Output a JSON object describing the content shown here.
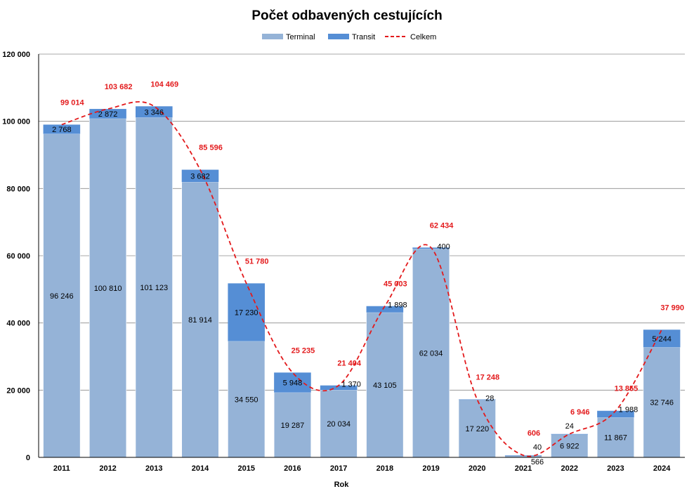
{
  "chart_data": {
    "type": "bar",
    "stacked": true,
    "title": "Počet odbavených cestujících",
    "xlabel": "Rok",
    "ylabel": "",
    "ylim": [
      0,
      120000
    ],
    "yticks": [
      0,
      20000,
      40000,
      60000,
      80000,
      100000,
      120000
    ],
    "ytick_labels": [
      "0",
      "20 000",
      "40 000",
      "60 000",
      "80 000",
      "100 000",
      "120 000"
    ],
    "grid": true,
    "legend_position": "top-center",
    "categories": [
      "2011",
      "2012",
      "2013",
      "2014",
      "2015",
      "2016",
      "2017",
      "2018",
      "2019",
      "2020",
      "2021",
      "2022",
      "2023",
      "2024"
    ],
    "series": [
      {
        "name": "Terminal",
        "color": "#95b3d7",
        "values": [
          96246,
          100810,
          101123,
          81914,
          34550,
          19287,
          20034,
          43105,
          62034,
          17220,
          566,
          6922,
          11867,
          32746
        ],
        "labels": [
          "96 246",
          "100 810",
          "101 123",
          "81 914",
          "34 550",
          "19 287",
          "20 034",
          "43 105",
          "62 034",
          "17 220",
          "566",
          "6 922",
          "11 867",
          "32 746"
        ]
      },
      {
        "name": "Transit",
        "color": "#558ed5",
        "values": [
          2768,
          2872,
          3346,
          3682,
          17230,
          5948,
          1370,
          1898,
          400,
          28,
          40,
          24,
          1988,
          5244
        ],
        "labels": [
          "2 768",
          "2 872",
          "3 346",
          "3 682",
          "17 230",
          "5 948",
          "1 370",
          "1 898",
          "400",
          "28",
          "40",
          "24",
          "1 988",
          "5 244"
        ]
      }
    ],
    "line": {
      "name": "Celkem",
      "color": "#e31a1c",
      "style": "dashed",
      "values": [
        99014,
        103682,
        104469,
        85596,
        51780,
        25235,
        21404,
        45003,
        62434,
        17248,
        606,
        6946,
        13855,
        37990
      ],
      "labels": [
        "99 014",
        "103 682",
        "104 469",
        "85 596",
        "51 780",
        "25 235",
        "21 404",
        "45 003",
        "62 434",
        "17 248",
        "606",
        "6 946",
        "13 855",
        "37 990"
      ]
    }
  }
}
